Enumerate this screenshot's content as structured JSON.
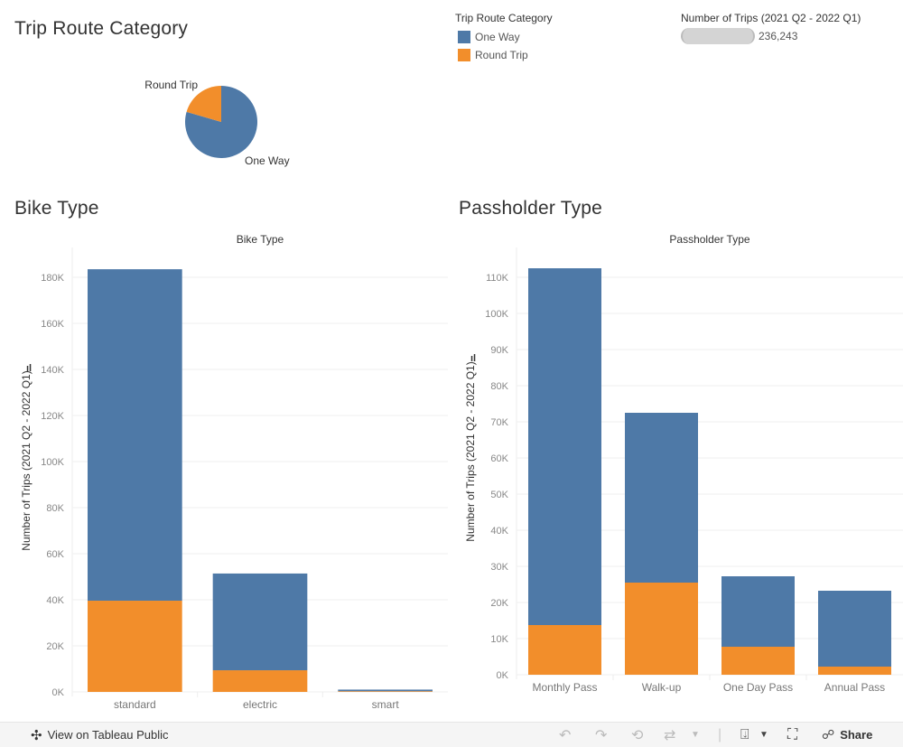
{
  "colors": {
    "one_way": "#4e79a7",
    "round_trip": "#f28e2b",
    "grid": "#efefef",
    "tick": "#888888"
  },
  "sections": {
    "trip_route_title": "Trip Route Category",
    "bike_type_title": "Bike Type",
    "passholder_title": "Passholder Type"
  },
  "legend": {
    "title": "Trip Route Category",
    "items": [
      {
        "label": "One Way",
        "color": "#4e79a7"
      },
      {
        "label": "Round Trip",
        "color": "#f28e2b"
      }
    ]
  },
  "size_legend": {
    "title": "Number of Trips (2021 Q2 - 2022 Q1)",
    "value": "236,243"
  },
  "footer": {
    "view_label": "View on Tableau Public",
    "share_label": "Share"
  },
  "chart_data": [
    {
      "type": "pie",
      "title": "Trip Route Category",
      "categories": [
        "One Way",
        "Round Trip"
      ],
      "values": [
        79.5,
        20.5
      ],
      "unit": "percent"
    },
    {
      "type": "bar",
      "stacked": true,
      "title": "Bike Type",
      "xlabel": "Bike Type",
      "ylabel": "Number of Trips (2021 Q2 - 2022 Q1)",
      "categories": [
        "standard",
        "electric",
        "smart"
      ],
      "series": [
        {
          "name": "Round Trip",
          "values": [
            39600,
            9400,
            300
          ]
        },
        {
          "name": "One Way",
          "values": [
            143900,
            42000,
            700
          ]
        }
      ],
      "ylim": [
        0,
        185000
      ],
      "yticks": [
        0,
        20000,
        40000,
        60000,
        80000,
        100000,
        120000,
        140000,
        160000,
        180000
      ],
      "ytick_labels": [
        "0K",
        "20K",
        "40K",
        "60K",
        "80K",
        "100K",
        "120K",
        "140K",
        "160K",
        "180K"
      ],
      "grid": true
    },
    {
      "type": "bar",
      "stacked": true,
      "title": "Passholder Type",
      "xlabel": "Passholder Type",
      "ylabel": "Number of Trips (2021 Q2 - 2022 Q1)",
      "categories": [
        "Monthly Pass",
        "Walk-up",
        "One Day Pass",
        "Annual Pass"
      ],
      "series": [
        {
          "name": "Round Trip",
          "values": [
            13750,
            25500,
            7750,
            2250
          ]
        },
        {
          "name": "One Way",
          "values": [
            98750,
            47000,
            19500,
            21000
          ]
        }
      ],
      "ylim": [
        0,
        112500
      ],
      "yticks": [
        0,
        10000,
        20000,
        30000,
        40000,
        50000,
        60000,
        70000,
        80000,
        90000,
        100000,
        110000
      ],
      "ytick_labels": [
        "0K",
        "10K",
        "20K",
        "30K",
        "40K",
        "50K",
        "60K",
        "70K",
        "80K",
        "90K",
        "100K",
        "110K"
      ],
      "grid": true
    }
  ]
}
